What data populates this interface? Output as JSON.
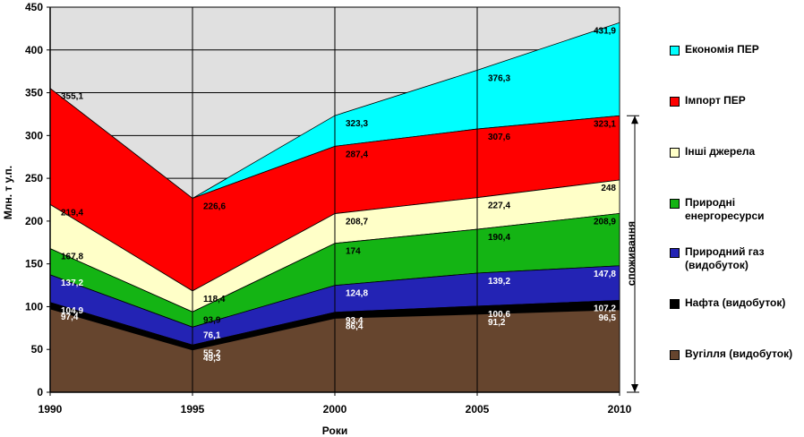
{
  "chart_data": {
    "type": "area",
    "stacked": true,
    "xlabel": "Роки",
    "ylabel": "Млн. т у.п.",
    "x": [
      1990,
      1995,
      2000,
      2005,
      2010
    ],
    "ylim": [
      0,
      450
    ],
    "yticks": [
      0,
      50,
      100,
      150,
      200,
      250,
      300,
      350,
      400,
      450
    ],
    "grid": true,
    "legend_position": "right",
    "bracket_label": "споживання",
    "series": [
      {
        "name": "Вугілля (видобуток)",
        "color": "#66452e",
        "label_color": "#ffffff",
        "cumulative": [
          97.4,
          49.3,
          86.4,
          91.2,
          96.5
        ],
        "labels": [
          "97,4",
          "49,3",
          "86,4",
          "91,2",
          "96,5"
        ]
      },
      {
        "name": "Нафта (видобуток)",
        "color": "#000000",
        "label_color": "#ffffff",
        "cumulative": [
          104.9,
          55.2,
          93.4,
          100.6,
          107.2
        ],
        "labels": [
          "104,9",
          "55,2",
          "93,4",
          "100,6",
          "107,2"
        ]
      },
      {
        "name": "Природний газ\n(видобуток)",
        "color": "#2323b4",
        "label_color": "#ffffff",
        "cumulative": [
          137.2,
          76.1,
          124.8,
          139.2,
          147.8
        ],
        "labels": [
          "137,2",
          "76,1",
          "124,8",
          "139,2",
          "147,8"
        ]
      },
      {
        "name": "Природні\nенергоресурси",
        "color": "#14b414",
        "label_color": "#000000",
        "cumulative": [
          167.8,
          93.9,
          174,
          190.4,
          208.9
        ],
        "labels": [
          "167,8",
          "93,9",
          "174",
          "190,4",
          "208,9"
        ]
      },
      {
        "name": "Інші джерела",
        "color": "#ffffc8",
        "label_color": "#000000",
        "cumulative": [
          219.4,
          118.4,
          208.7,
          227.4,
          248
        ],
        "labels": [
          "219,4",
          "118,4",
          "208,7",
          "227,4",
          "248"
        ]
      },
      {
        "name": "Імпорт ПЕР",
        "color": "#ff0000",
        "label_color": "#000000",
        "cumulative": [
          355.1,
          226.6,
          287.4,
          307.6,
          323.1
        ],
        "labels": [
          "355,1",
          "226,6",
          "287,4",
          "307,6",
          "323,1"
        ]
      },
      {
        "name": "Економія ПЕР",
        "color": "#00ffff",
        "label_color": "#000000",
        "cumulative": [
          355.1,
          226.6,
          323.3,
          376.3,
          431.9
        ],
        "labels": [
          "",
          "",
          "323,3",
          "376,3",
          "431,9"
        ]
      }
    ]
  },
  "legend_order": [
    6,
    5,
    4,
    3,
    2,
    1,
    0
  ]
}
